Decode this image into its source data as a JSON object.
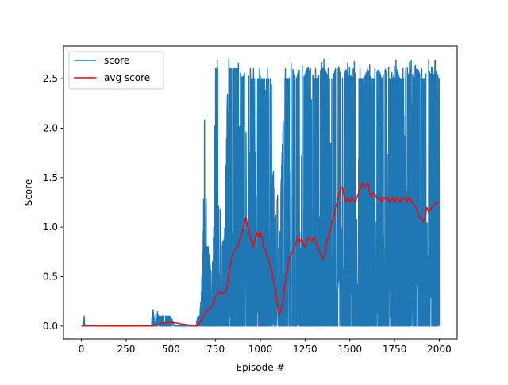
{
  "chart_data": {
    "type": "line",
    "title": "",
    "xlabel": "Episode #",
    "ylabel": "Score",
    "xlim": [
      -100,
      2100
    ],
    "ylim": [
      -0.13,
      2.83
    ],
    "xticks": [
      0,
      250,
      500,
      750,
      1000,
      1250,
      1500,
      1750,
      2000
    ],
    "xtick_labels": [
      "0",
      "250",
      "500",
      "750",
      "1000",
      "1250",
      "1500",
      "1750",
      "2000"
    ],
    "yticks": [
      0.0,
      0.5,
      1.0,
      1.5,
      2.0,
      2.5
    ],
    "ytick_labels": [
      "0.0",
      "0.5",
      "1.0",
      "1.5",
      "2.0",
      "2.5"
    ],
    "grid": false,
    "legend": {
      "position": "top-left",
      "entries": [
        "score",
        "avg score"
      ]
    },
    "series": [
      {
        "name": "score",
        "color": "#1f77b4",
        "style": "noisy-per-episode",
        "x": [
          0,
          10,
          15,
          20,
          50,
          100,
          200,
          300,
          390,
          400,
          410,
          420,
          430,
          440,
          450,
          460,
          470,
          480,
          490,
          500,
          520,
          540,
          560,
          600,
          640,
          650,
          660,
          670,
          680,
          690,
          700,
          710,
          720,
          730,
          740,
          750,
          760,
          780,
          800,
          820,
          840,
          860,
          880,
          900,
          920,
          940,
          960,
          980,
          1000,
          1020,
          1040,
          1060,
          1080,
          1100,
          1110,
          1120,
          1140,
          1160,
          1180,
          1200,
          1220,
          1240,
          1260,
          1280,
          1300,
          1320,
          1340,
          1360,
          1380,
          1400,
          1420,
          1440,
          1460,
          1480,
          1500,
          1520,
          1540,
          1560,
          1580,
          1600,
          1620,
          1640,
          1660,
          1680,
          1700,
          1720,
          1740,
          1760,
          1780,
          1800,
          1820,
          1840,
          1860,
          1880,
          1900,
          1920,
          1940,
          1960,
          1980,
          2000
        ],
        "high": [
          0.0,
          0.0,
          0.1,
          0.0,
          0.0,
          0.0,
          0.0,
          0.0,
          0.0,
          0.19,
          0.0,
          0.19,
          0.1,
          0.1,
          0.1,
          0.1,
          0.1,
          0.1,
          0.1,
          0.1,
          0.0,
          0.0,
          0.0,
          0.0,
          0.0,
          0.1,
          0.1,
          0.3,
          0.8,
          2.4,
          0.8,
          0.8,
          0.6,
          0.5,
          1.0,
          2.7,
          2.7,
          0.8,
          0.9,
          2.7,
          2.7,
          2.7,
          2.7,
          2.6,
          2.7,
          2.6,
          2.6,
          2.6,
          2.6,
          2.6,
          2.6,
          2.6,
          1.0,
          1.4,
          1.0,
          1.7,
          2.6,
          2.6,
          2.7,
          2.6,
          2.7,
          2.6,
          2.7,
          2.7,
          2.6,
          2.6,
          2.7,
          2.7,
          2.6,
          2.6,
          2.7,
          2.7,
          2.6,
          2.7,
          2.6,
          2.7,
          2.6,
          2.6,
          2.6,
          2.7,
          2.6,
          2.6,
          2.7,
          2.6,
          2.7,
          2.6,
          2.6,
          2.7,
          2.6,
          2.6,
          2.6,
          2.7,
          2.6,
          2.7,
          2.6,
          2.6,
          2.7,
          2.6,
          2.7,
          2.6
        ],
        "low": [
          0.0,
          0.0,
          0.0,
          0.0,
          0.0,
          0.0,
          0.0,
          0.0,
          0.0,
          0.0,
          0.0,
          0.0,
          0.0,
          0.0,
          0.0,
          0.0,
          0.0,
          0.0,
          0.0,
          0.0,
          0.0,
          0.0,
          0.0,
          0.0,
          0.0,
          0.0,
          0.0,
          0.0,
          0.0,
          0.0,
          0.0,
          0.0,
          0.0,
          0.0,
          0.0,
          0.0,
          0.0,
          0.0,
          0.0,
          0.0,
          0.0,
          0.0,
          0.0,
          0.0,
          0.0,
          0.0,
          0.0,
          0.0,
          0.0,
          0.0,
          0.0,
          0.0,
          0.0,
          0.0,
          0.0,
          0.0,
          0.0,
          0.0,
          0.0,
          0.0,
          0.0,
          0.0,
          0.0,
          0.0,
          0.0,
          0.0,
          0.0,
          0.0,
          0.0,
          0.0,
          0.0,
          0.0,
          0.0,
          0.0,
          0.0,
          0.0,
          0.0,
          0.0,
          0.0,
          0.0,
          0.0,
          0.0,
          0.0,
          0.0,
          0.0,
          0.0,
          0.0,
          0.0,
          0.0,
          0.0,
          0.0,
          0.0,
          0.0,
          0.0,
          0.0,
          0.0,
          0.0,
          0.0,
          0.0,
          0.0
        ]
      },
      {
        "name": "avg score",
        "color": "#ff0000",
        "x": [
          0,
          50,
          100,
          200,
          300,
          400,
          450,
          500,
          530,
          560,
          600,
          640,
          660,
          680,
          700,
          730,
          750,
          770,
          790,
          810,
          830,
          850,
          870,
          890,
          910,
          920,
          930,
          945,
          960,
          980,
          990,
          1000,
          1010,
          1020,
          1030,
          1050,
          1070,
          1090,
          1100,
          1110,
          1120,
          1130,
          1140,
          1150,
          1160,
          1170,
          1180,
          1190,
          1200,
          1210,
          1220,
          1230,
          1240,
          1250,
          1260,
          1270,
          1280,
          1290,
          1300,
          1310,
          1320,
          1330,
          1340,
          1350,
          1360,
          1370,
          1380,
          1390,
          1400,
          1410,
          1420,
          1430,
          1440,
          1450,
          1460,
          1470,
          1480,
          1490,
          1500,
          1510,
          1520,
          1530,
          1540,
          1550,
          1560,
          1570,
          1580,
          1590,
          1600,
          1610,
          1620,
          1630,
          1640,
          1650,
          1660,
          1670,
          1680,
          1690,
          1700,
          1710,
          1720,
          1730,
          1740,
          1750,
          1760,
          1770,
          1780,
          1790,
          1800,
          1810,
          1820,
          1830,
          1840,
          1850,
          1860,
          1870,
          1880,
          1890,
          1900,
          1910,
          1920,
          1930,
          1940,
          1950,
          1960,
          1970,
          1980,
          1990,
          2000
        ],
        "y": [
          0.005,
          0.005,
          0.0,
          0.0,
          0.0,
          0.0,
          0.03,
          0.04,
          0.03,
          0.02,
          0.01,
          0.0,
          0.02,
          0.1,
          0.15,
          0.2,
          0.3,
          0.35,
          0.33,
          0.35,
          0.6,
          0.75,
          0.8,
          0.9,
          1.02,
          1.1,
          1.0,
          0.9,
          0.8,
          0.95,
          0.9,
          0.95,
          0.88,
          0.8,
          0.75,
          0.65,
          0.5,
          0.3,
          0.15,
          0.12,
          0.2,
          0.3,
          0.45,
          0.55,
          0.68,
          0.72,
          0.75,
          0.8,
          0.85,
          0.9,
          0.85,
          0.88,
          0.82,
          0.8,
          0.85,
          0.9,
          0.87,
          0.85,
          0.9,
          0.85,
          0.8,
          0.75,
          0.7,
          0.68,
          0.72,
          0.85,
          0.9,
          0.95,
          1.05,
          1.1,
          1.2,
          1.25,
          1.35,
          1.39,
          1.4,
          1.3,
          1.25,
          1.3,
          1.25,
          1.3,
          1.28,
          1.25,
          1.3,
          1.35,
          1.4,
          1.45,
          1.4,
          1.42,
          1.45,
          1.35,
          1.3,
          1.35,
          1.33,
          1.3,
          1.28,
          1.3,
          1.25,
          1.3,
          1.28,
          1.3,
          1.25,
          1.28,
          1.3,
          1.25,
          1.3,
          1.28,
          1.25,
          1.3,
          1.28,
          1.3,
          1.25,
          1.3,
          1.28,
          1.25,
          1.22,
          1.2,
          1.15,
          1.1,
          1.08,
          1.05,
          1.1,
          1.2,
          1.15,
          1.18,
          1.2,
          1.22,
          1.25,
          1.24,
          1.25
        ]
      }
    ]
  }
}
